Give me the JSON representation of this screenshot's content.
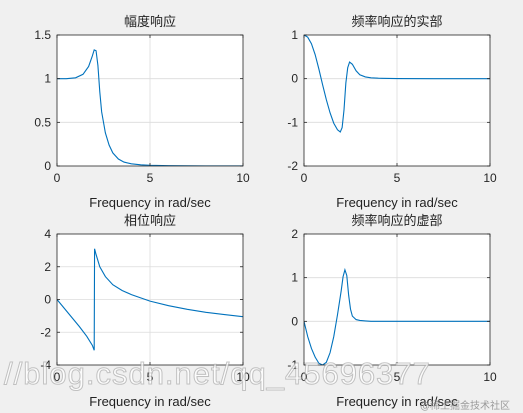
{
  "chart_data": [
    {
      "type": "line",
      "title": "幅度响应",
      "xlabel": "",
      "ylabel": "",
      "xlim": [
        0,
        10
      ],
      "ylim": [
        0,
        1.5
      ],
      "xticks": [
        0,
        5,
        10
      ],
      "yticks": [
        0,
        0.5,
        1,
        1.5
      ],
      "grid": true,
      "series": [
        {
          "color": "#0072bd",
          "x": [
            0,
            0.5,
            1.0,
            1.4,
            1.7,
            1.9,
            2.0,
            2.1,
            2.2,
            2.3,
            2.4,
            2.6,
            2.8,
            3.0,
            3.3,
            3.6,
            4.0,
            4.5,
            5.0,
            6.0,
            7.0,
            8.0,
            9.0,
            10.0
          ],
          "y": [
            1.0,
            1.0,
            1.01,
            1.05,
            1.14,
            1.26,
            1.33,
            1.32,
            1.15,
            0.85,
            0.62,
            0.38,
            0.24,
            0.15,
            0.08,
            0.045,
            0.025,
            0.014,
            0.008,
            0.004,
            0.002,
            0.001,
            0.0005,
            0.0003
          ]
        }
      ]
    },
    {
      "type": "line",
      "title": "频率响应的实部",
      "xlabel": "Frequency in rad/sec",
      "ylabel": "",
      "xlim": [
        0,
        10
      ],
      "ylim": [
        -2,
        1
      ],
      "xticks": [
        0,
        5,
        10
      ],
      "yticks": [
        -2,
        -1,
        0,
        1
      ],
      "grid": true,
      "series": [
        {
          "color": "#0072bd",
          "x": [
            0,
            0.2,
            0.4,
            0.6,
            0.8,
            1.0,
            1.2,
            1.4,
            1.6,
            1.8,
            1.95,
            2.05,
            2.15,
            2.25,
            2.35,
            2.45,
            2.6,
            2.8,
            3.0,
            3.3,
            3.6,
            4.0,
            5.0,
            7.0,
            10.0
          ],
          "y": [
            1.0,
            0.95,
            0.8,
            0.55,
            0.22,
            -0.14,
            -0.48,
            -0.78,
            -1.02,
            -1.17,
            -1.22,
            -1.12,
            -0.72,
            -0.1,
            0.25,
            0.38,
            0.33,
            0.18,
            0.09,
            0.04,
            0.02,
            0.01,
            0.003,
            0.0,
            0.0
          ]
        }
      ]
    },
    {
      "type": "line",
      "title": "相位响应",
      "xlabel": "Frequency in rad/sec",
      "ylabel": "",
      "xlim": [
        0,
        10
      ],
      "ylim": [
        -4,
        4
      ],
      "xticks": [
        0,
        5,
        10
      ],
      "yticks": [
        -4,
        -2,
        0,
        2,
        4
      ],
      "grid": true,
      "series": [
        {
          "color": "#0072bd",
          "x": [
            0,
            0.4,
            0.8,
            1.2,
            1.6,
            1.9,
            2.0,
            2.02,
            2.1,
            2.3,
            2.6,
            3.0,
            3.5,
            4.0,
            5.0,
            6.0,
            7.0,
            8.0,
            9.0,
            10.0
          ],
          "y": [
            0.0,
            -0.55,
            -1.1,
            -1.65,
            -2.25,
            -2.8,
            -3.1,
            3.1,
            2.75,
            2.0,
            1.4,
            0.9,
            0.55,
            0.3,
            -0.1,
            -0.38,
            -0.6,
            -0.78,
            -0.92,
            -1.05
          ]
        }
      ]
    },
    {
      "type": "line",
      "title": "频率响应的虚部",
      "xlabel": "Frequency in rad/sec",
      "ylabel": "",
      "xlim": [
        0,
        10
      ],
      "ylim": [
        -1,
        2
      ],
      "xticks": [
        0,
        5,
        10
      ],
      "yticks": [
        -1,
        0,
        1,
        2
      ],
      "grid": true,
      "series": [
        {
          "color": "#0072bd",
          "x": [
            0,
            0.2,
            0.4,
            0.6,
            0.8,
            1.0,
            1.2,
            1.4,
            1.6,
            1.8,
            2.0,
            2.1,
            2.2,
            2.3,
            2.4,
            2.5,
            2.6,
            2.8,
            3.0,
            3.3,
            3.6,
            4.0,
            5.0,
            7.0,
            10.0
          ],
          "y": [
            0.0,
            -0.35,
            -0.62,
            -0.82,
            -0.96,
            -1.0,
            -0.94,
            -0.72,
            -0.35,
            0.15,
            0.7,
            1.02,
            1.18,
            1.05,
            0.6,
            0.28,
            0.12,
            0.04,
            0.02,
            0.01,
            0.0,
            0.0,
            0.0,
            0.0,
            0.0
          ]
        }
      ]
    }
  ],
  "xlabels_printed": [
    "Frequency in rad/sec",
    "Frequency in rad/sec",
    "Frequency in rad/sec",
    "Frequency in rad/sec"
  ],
  "watermark": {
    "main": "//blog.csdn.net/qq_45696377",
    "corner": "@稀土掘金技术社区"
  }
}
